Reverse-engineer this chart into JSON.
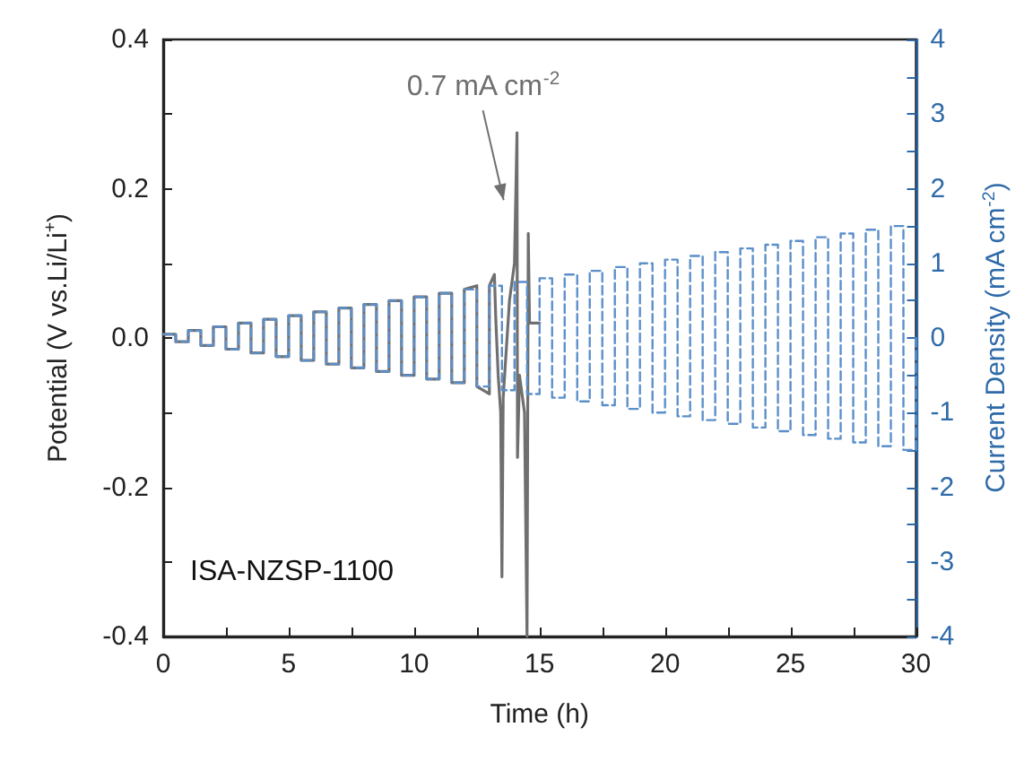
{
  "chart_data": {
    "type": "line",
    "xlabel": "Time (h)",
    "ylabel": "Potential (V vs.Li/Li$^{+}$)",
    "y2label": "Current Density (mA cm$^{-2}$)",
    "xlim": [
      0,
      30
    ],
    "xticks": [
      0,
      {
        "value": 2.5,
        "label": null
      },
      5,
      {
        "value": 7.5,
        "label": null
      },
      10,
      {
        "value": 12.5,
        "label": null
      },
      15,
      {
        "value": 17.5,
        "label": null
      },
      20,
      {
        "value": 22.5,
        "label": null
      },
      25,
      {
        "value": 27.5,
        "label": null
      },
      30
    ],
    "ylim": [
      -0.4,
      0.4
    ],
    "yticks": [
      -0.4,
      {
        "value": -0.3,
        "label": null
      },
      -0.2,
      {
        "value": -0.1,
        "label": null
      },
      {
        "value": 0,
        "label": "0.0"
      },
      {
        "value": 0.1,
        "label": null
      },
      0.2,
      {
        "value": 0.3,
        "label": null
      },
      0.4
    ],
    "y2lim": [
      -4,
      4
    ],
    "y2ticks": [
      -4,
      {
        "value": -3.5,
        "label": null
      },
      -3,
      {
        "value": -2.5,
        "label": null
      },
      -2,
      {
        "value": -1.5,
        "label": null
      },
      -1,
      {
        "value": -0.5,
        "label": null
      },
      0,
      {
        "value": 0.5,
        "label": null
      },
      1,
      {
        "value": 1.5,
        "label": null
      },
      2,
      {
        "value": 2.5,
        "label": null
      },
      3,
      {
        "value": 3.5,
        "label": null
      },
      4
    ],
    "grid": false,
    "marker": "none",
    "annotations": [
      {
        "text": "0.7 mA cm$^{-2}$",
        "x": 13.6,
        "y": 0.18
      },
      "ISA-NZSP-1100"
    ],
    "series": [
      {
        "type": "step",
        "axis": "y2",
        "color": "#5b8fca",
        "line_style": "dashed",
        "x": [
          0,
          0.5,
          1,
          1.5,
          2,
          2.5,
          3,
          3.5,
          4,
          4.5,
          5,
          5.5,
          6,
          6.5,
          7,
          7.5,
          8,
          8.5,
          9,
          9.5,
          10,
          10.5,
          11,
          11.5,
          12,
          12.5,
          13,
          13.5,
          14,
          14.5,
          15,
          15.5,
          16,
          16.5,
          17,
          17.5,
          18,
          18.5,
          19,
          19.5,
          20,
          20.5,
          21,
          21.5,
          22,
          22.5,
          23,
          23.5,
          24,
          24.5,
          25,
          25.5,
          26,
          26.5,
          27,
          27.5,
          28,
          28.5,
          29,
          29.5,
          30
        ],
        "values": [
          0.05,
          -0.05,
          0.1,
          -0.1,
          0.15,
          -0.15,
          0.2,
          -0.2,
          0.25,
          -0.25,
          0.3,
          -0.3,
          0.35,
          -0.35,
          0.4,
          -0.4,
          0.45,
          -0.45,
          0.5,
          -0.5,
          0.55,
          -0.55,
          0.6,
          -0.6,
          0.65,
          -0.65,
          0.7,
          -0.7,
          0.75,
          -0.75,
          0.8,
          -0.8,
          0.85,
          -0.85,
          0.9,
          -0.9,
          0.95,
          -0.95,
          1,
          -1,
          1.05,
          -1.05,
          1.1,
          -1.1,
          1.15,
          -1.15,
          1.2,
          -1.2,
          1.25,
          -1.25,
          1.3,
          -1.3,
          1.35,
          -1.35,
          1.4,
          -1.4,
          1.45,
          -1.45,
          1.5,
          -1.5,
          0
        ]
      },
      {
        "color": "#6f6f6f",
        "line_style": "solid",
        "x": [
          0,
          0.5,
          0.5,
          1,
          1,
          1.5,
          1.5,
          2,
          2,
          2.5,
          2.5,
          3,
          3,
          3.5,
          3.5,
          4,
          4,
          4.5,
          4.5,
          5,
          5,
          5.5,
          5.5,
          6,
          6,
          6.5,
          6.5,
          7,
          7,
          7.5,
          7.5,
          8,
          8,
          8.5,
          8.5,
          9,
          9,
          9.5,
          9.5,
          10,
          10,
          10.5,
          10.5,
          11,
          11,
          11.5,
          11.5,
          12,
          12,
          12.5,
          12.5,
          13,
          13,
          13.2,
          13.25,
          13.35,
          13.45,
          13.5,
          13.55,
          13.8,
          14,
          14.1,
          14.12,
          14.2,
          14.4,
          14.5,
          14.55,
          14.6,
          15
        ],
        "values": [
          0.005,
          0.005,
          -0.005,
          -0.005,
          0.01,
          0.01,
          -0.01,
          -0.01,
          0.015,
          0.015,
          -0.015,
          -0.015,
          0.02,
          0.02,
          -0.02,
          -0.02,
          0.025,
          0.025,
          -0.025,
          -0.025,
          0.03,
          0.03,
          -0.03,
          -0.03,
          0.035,
          0.035,
          -0.035,
          -0.035,
          0.04,
          0.04,
          -0.04,
          -0.04,
          0.045,
          0.045,
          -0.045,
          -0.045,
          0.05,
          0.05,
          -0.05,
          -0.05,
          0.055,
          0.055,
          -0.055,
          -0.055,
          0.06,
          0.06,
          -0.06,
          -0.06,
          0.065,
          0.07,
          -0.065,
          -0.075,
          0.07,
          0.085,
          0.03,
          -0.05,
          -0.1,
          -0.32,
          -0.08,
          0.05,
          0.1,
          0.275,
          -0.16,
          -0.05,
          -0.1,
          -0.4,
          0.14,
          0.02,
          0.02
        ]
      }
    ]
  }
}
